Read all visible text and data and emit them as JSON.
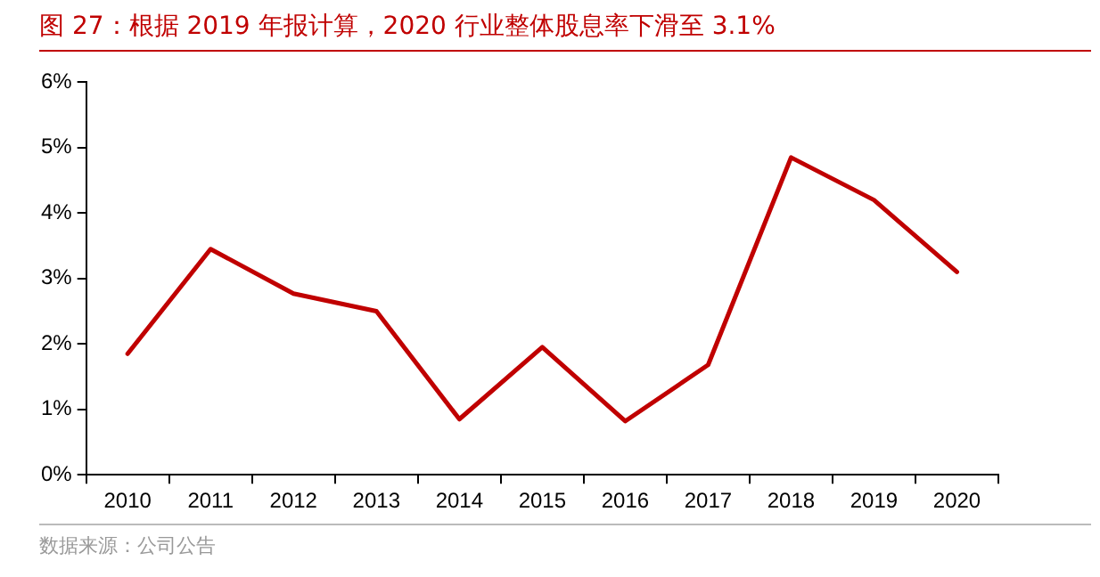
{
  "chart_data": {
    "type": "line",
    "title": "图 27：根据 2019 年报计算，2020 行业整体股息率下滑至 3.1%",
    "categories": [
      "2010",
      "2011",
      "2012",
      "2013",
      "2014",
      "2015",
      "2016",
      "2017",
      "2018",
      "2019",
      "2020"
    ],
    "series": [
      {
        "color": "#c00000",
        "values": [
          1.85,
          3.45,
          2.77,
          2.5,
          0.85,
          1.95,
          0.82,
          1.68,
          4.85,
          4.2,
          3.1
        ]
      }
    ],
    "ylim": [
      0,
      6
    ],
    "yticks": [
      {
        "value": 0,
        "label": "0%"
      },
      {
        "value": 1,
        "label": "1%"
      },
      {
        "value": 2,
        "label": "2%"
      },
      {
        "value": 3,
        "label": "3%"
      },
      {
        "value": 4,
        "label": "4%"
      },
      {
        "value": 5,
        "label": "5%"
      },
      {
        "value": 6,
        "label": "6%"
      }
    ],
    "grid": false,
    "legend": false,
    "marker": "none",
    "line_style": "solid",
    "annotations": [
      "数据来源：公司公告"
    ]
  }
}
